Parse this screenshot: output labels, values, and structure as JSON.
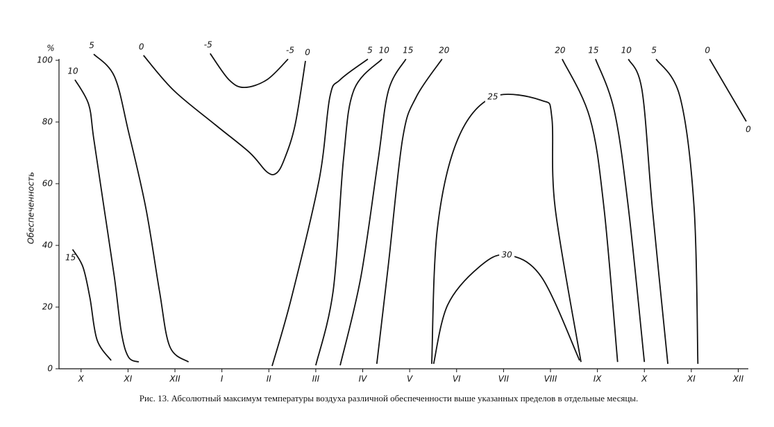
{
  "chart_data": {
    "type": "contour",
    "y_unit": "%",
    "ylabel": "Обеспеченность",
    "ylim": [
      0,
      100
    ],
    "yticks": [
      0,
      20,
      40,
      60,
      80,
      100
    ],
    "xlim": [
      -0.47,
      14.17
    ],
    "categories": [
      "X",
      "XI",
      "XII",
      "I",
      "II",
      "III",
      "IV",
      "V",
      "VI",
      "VII",
      "VIII",
      "IX",
      "X",
      "XI",
      "XII"
    ],
    "color": "#111111",
    "series": [
      {
        "name": "10",
        "x": [
          -0.13,
          0.16,
          0.27,
          0.49,
          0.71,
          0.86,
          1.01,
          1.23
        ],
        "values": [
          93.7,
          85.8,
          74.6,
          52.1,
          29.7,
          11.7,
          3.8,
          2.2
        ]
      },
      {
        "name": "15",
        "x": [
          -0.18,
          0.04,
          0.19,
          0.34,
          0.64
        ],
        "values": [
          38.7,
          33,
          22.9,
          9.4,
          2.7
        ]
      },
      {
        "name": "5",
        "x": [
          0.27,
          0.71,
          1.01,
          1.38,
          1.67,
          1.89,
          2.29
        ],
        "values": [
          102,
          94.8,
          76.9,
          52.1,
          25.2,
          7.2,
          2.2
        ]
      },
      {
        "name": "0",
        "x": [
          1.33,
          1.97,
          2.86,
          3.59,
          3.96,
          4.16,
          4.33,
          4.56,
          4.78
        ],
        "values": [
          101.6,
          90.3,
          79.1,
          70.1,
          63.8,
          63.4,
          67.9,
          79.1,
          99.8
        ]
      },
      {
        "name": "-5",
        "x": [
          2.75,
          3.15,
          3.48,
          3.96,
          4.41
        ],
        "values": [
          102.2,
          93.7,
          91.2,
          93.7,
          100.4
        ]
      },
      {
        "name": "5",
        "x": [
          4.07,
          4.48,
          5.07,
          5.3,
          5.52,
          6.11
        ],
        "values": [
          0.9,
          22.9,
          61.1,
          88.1,
          93.7,
          100.4
        ]
      },
      {
        "name": "10",
        "x": [
          5.0,
          5.37,
          5.59,
          5.81,
          6.41
        ],
        "values": [
          1.1,
          25.2,
          67.9,
          90.3,
          100.4
        ]
      },
      {
        "name": "15",
        "x": [
          5.52,
          5.96,
          6.33,
          6.55,
          6.92
        ],
        "values": [
          1.1,
          29.7,
          67.9,
          90.3,
          100.4
        ]
      },
      {
        "name": "20",
        "x": [
          6.3,
          6.55,
          6.85,
          7.14,
          7.69
        ],
        "values": [
          1.6,
          34.2,
          74.6,
          88.1,
          100.4
        ]
      },
      {
        "name": "25",
        "x": [
          7.47,
          7.59,
          8.03,
          8.77,
          9.81,
          10.03,
          10.1,
          10.65
        ],
        "values": [
          1.6,
          45.4,
          74.6,
          88.1,
          87.0,
          81.3,
          52.1,
          2.2
        ]
      },
      {
        "name": "30",
        "x": [
          7.51,
          7.81,
          8.48,
          9.07,
          9.81,
          10.62
        ],
        "values": [
          1.6,
          20.7,
          33.0,
          36.9,
          29.7,
          2.7
        ]
      },
      {
        "name": "20",
        "x": [
          10.25,
          10.84,
          11.14,
          11.43
        ],
        "values": [
          100.4,
          81.3,
          52.1,
          2.2
        ]
      },
      {
        "name": "15",
        "x": [
          10.96,
          11.36,
          11.66,
          12.0
        ],
        "values": [
          100.4,
          83.6,
          52.1,
          2.2
        ]
      },
      {
        "name": "10",
        "x": [
          11.66,
          11.95,
          12.17,
          12.5
        ],
        "values": [
          100.4,
          90.3,
          52.1,
          1.6
        ]
      },
      {
        "name": "5",
        "x": [
          12.25,
          12.76,
          13.06,
          13.14
        ],
        "values": [
          100.4,
          88.1,
          52.1,
          1.6
        ]
      },
      {
        "name": "0",
        "x": [
          13.39,
          14.17
        ],
        "values": [
          100.4,
          80.2
        ]
      }
    ],
    "caption": "Рис. 13. Абсолютный максимум температуры воздуха различной обеспеченности выше указанных пределов в отдельные месяцы."
  }
}
